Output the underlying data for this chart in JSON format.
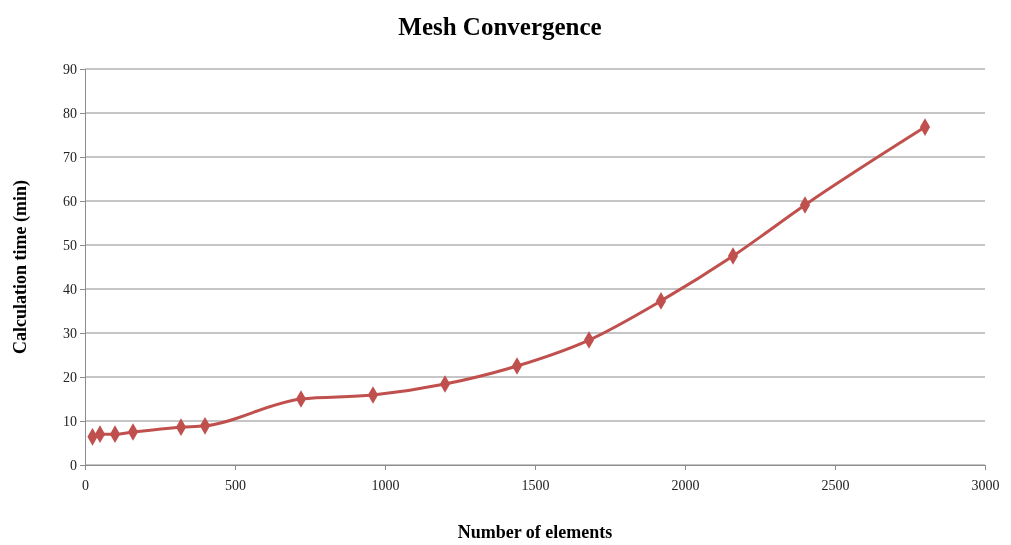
{
  "chart_data": {
    "type": "line",
    "title": "Mesh Convergence",
    "xlabel": "Number of elements",
    "ylabel": "Calculation time (min)",
    "x": [
      25,
      50,
      100,
      160,
      320,
      400,
      720,
      960,
      1200,
      1440,
      1680,
      1920,
      2160,
      2400,
      2800
    ],
    "series": [
      {
        "color": "#c0504d",
        "values": [
          6.4,
          7.0,
          7.0,
          7.5,
          8.6,
          8.9,
          15.0,
          15.9,
          18.4,
          22.5,
          28.4,
          37.3,
          47.5,
          59.1,
          76.8
        ]
      }
    ],
    "xlim": [
      0,
      3000
    ],
    "xticks": [
      0,
      500,
      1000,
      1500,
      2000,
      2500,
      3000
    ],
    "ylim": [
      0,
      90
    ],
    "yticks": [
      0,
      10,
      20,
      30,
      40,
      50,
      60,
      70,
      80,
      90
    ],
    "grid": "y",
    "marker": "diamond",
    "line_style": "solid"
  }
}
